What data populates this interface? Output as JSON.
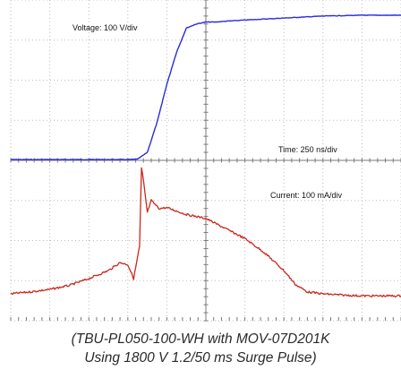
{
  "caption": {
    "line1": "(TBU-PL050-100-WH with MOV-07D201K",
    "line2": "Using 1800 V 1.2/50 ms Surge Pulse)"
  },
  "chart_data": {
    "type": "line",
    "title": "",
    "xlabel": "",
    "ylabel": "",
    "grid": true,
    "divisions": {
      "x": 10,
      "y": 8
    },
    "xlim": [
      0,
      10
    ],
    "ylim": [
      -4,
      4
    ],
    "colors": {
      "voltage": "#2a2ae0",
      "current": "#c8281e",
      "grid": "#bdbdbd"
    },
    "annotations": {
      "voltage": "Voltage: 100 V/div",
      "time": "Time: 250 ns/div",
      "current": "Current: 100 mA/div"
    },
    "series": [
      {
        "name": "",
        "color": "#2a2ae0",
        "x": [
          0,
          1,
          2,
          3,
          3.25,
          3.5,
          3.75,
          4.0,
          4.25,
          4.5,
          4.75,
          5.0,
          5.25,
          5.5,
          6,
          7,
          8,
          9,
          10
        ],
        "y": [
          0.02,
          0.02,
          0.02,
          0.02,
          0.03,
          0.2,
          0.95,
          1.9,
          2.7,
          3.3,
          3.4,
          3.45,
          3.45,
          3.47,
          3.5,
          3.55,
          3.6,
          3.62,
          3.62
        ]
      },
      {
        "name": "",
        "color": "#c8281e",
        "x": [
          0,
          0.5,
          1,
          1.5,
          2,
          2.5,
          2.8,
          3.0,
          3.15,
          3.3,
          3.35,
          3.4,
          3.5,
          3.6,
          3.8,
          4.0,
          4.5,
          5.0,
          5.5,
          6,
          6.5,
          7,
          7.3,
          7.6,
          8,
          8.5,
          9,
          9.5,
          10
        ],
        "y": [
          -3.33,
          -3.28,
          -3.22,
          -3.12,
          -2.95,
          -2.75,
          -2.55,
          -2.6,
          -2.95,
          -2.15,
          -0.2,
          -0.5,
          -1.3,
          -1.0,
          -1.2,
          -1.18,
          -1.35,
          -1.45,
          -1.7,
          -1.95,
          -2.3,
          -2.75,
          -3.1,
          -3.28,
          -3.33,
          -3.36,
          -3.38,
          -3.38,
          -3.38
        ]
      }
    ]
  }
}
